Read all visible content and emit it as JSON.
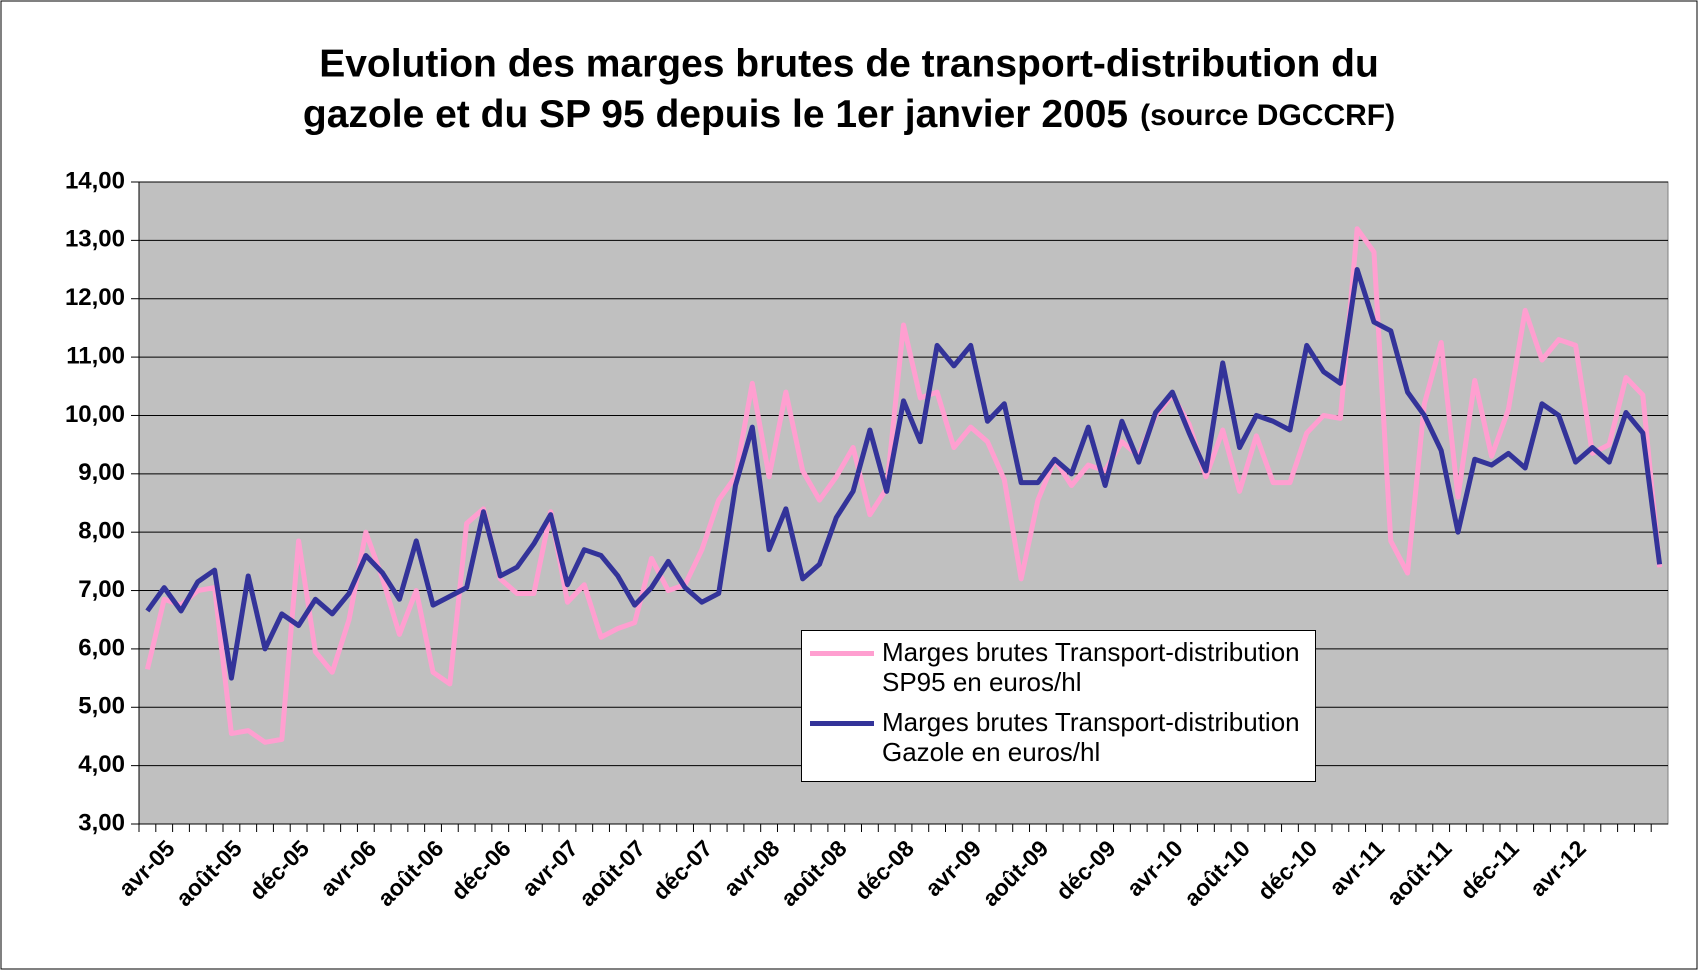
{
  "chart_data": {
    "type": "line",
    "title_lines": [
      "Evolution des marges brutes de transport-distribution du",
      "gazole et du SP 95 depuis le 1er janvier 2005"
    ],
    "source": "(source DGCCRF)",
    "categories": [
      null,
      "avr-05",
      null,
      null,
      null,
      "août-05",
      null,
      null,
      null,
      "déc-05",
      null,
      null,
      null,
      "avr-06",
      null,
      null,
      null,
      "août-06",
      null,
      null,
      null,
      "déc-06",
      null,
      null,
      null,
      "avr-07",
      null,
      null,
      null,
      "août-07",
      null,
      null,
      null,
      "déc-07",
      null,
      null,
      null,
      "avr-08",
      null,
      null,
      null,
      "août-08",
      null,
      null,
      null,
      "déc-08",
      null,
      null,
      null,
      "avr-09",
      null,
      null,
      null,
      "août-09",
      null,
      null,
      null,
      "déc-09",
      null,
      null,
      null,
      "avr-10",
      null,
      null,
      null,
      "août-10",
      null,
      null,
      null,
      "déc-10",
      null,
      null,
      null,
      "avr-11",
      null,
      null,
      null,
      "août-11",
      null,
      null,
      null,
      "déc-11",
      null,
      null,
      null,
      "avr-12",
      null,
      null,
      null,
      null,
      null
    ],
    "series": [
      {
        "name": "Marges brutes Transport-distribution SP95 en euros/hl",
        "color": "#ff9fd0",
        "values": [
          5.65,
          6.85,
          6.75,
          7.0,
          7.05,
          4.55,
          4.6,
          4.4,
          4.45,
          7.85,
          5.95,
          5.6,
          6.5,
          8.0,
          7.2,
          6.25,
          7.0,
          5.6,
          5.4,
          8.15,
          8.4,
          7.2,
          6.95,
          6.95,
          8.35,
          6.8,
          7.1,
          6.2,
          6.35,
          6.45,
          7.55,
          7.0,
          7.1,
          7.7,
          8.55,
          8.95,
          10.55,
          8.95,
          10.4,
          9.05,
          8.55,
          8.95,
          9.45,
          8.3,
          8.75,
          11.55,
          10.3,
          10.4,
          9.45,
          9.8,
          9.55,
          8.9,
          7.2,
          8.55,
          9.25,
          8.8,
          9.15,
          9.05,
          9.55,
          9.3,
          10.0,
          10.35,
          9.85,
          8.95,
          9.75,
          8.7,
          9.65,
          8.85,
          8.85,
          9.7,
          10.0,
          9.95,
          13.2,
          12.8,
          7.85,
          7.3,
          10.2,
          11.25,
          8.6,
          10.6,
          9.3,
          10.1,
          11.8,
          10.95,
          11.3,
          11.2,
          9.35,
          9.5,
          10.65,
          10.35,
          7.4
        ]
      },
      {
        "name": "Marges brutes Transport-distribution Gazole en euros/hl",
        "color": "#333399",
        "values": [
          6.65,
          7.05,
          6.65,
          7.15,
          7.35,
          5.5,
          7.25,
          6.0,
          6.6,
          6.4,
          6.85,
          6.6,
          6.95,
          7.6,
          7.3,
          6.85,
          7.85,
          6.75,
          6.9,
          7.05,
          8.35,
          7.25,
          7.4,
          7.8,
          8.3,
          7.1,
          7.7,
          7.6,
          7.25,
          6.75,
          7.05,
          7.5,
          7.05,
          6.8,
          6.95,
          8.8,
          9.8,
          7.7,
          8.4,
          7.2,
          7.45,
          8.25,
          8.7,
          9.75,
          8.7,
          10.25,
          9.55,
          11.2,
          10.85,
          11.2,
          9.9,
          10.2,
          8.85,
          8.85,
          9.25,
          9.0,
          9.8,
          8.8,
          9.9,
          9.2,
          10.05,
          10.4,
          9.7,
          9.05,
          10.9,
          9.45,
          10.0,
          9.9,
          9.75,
          11.2,
          10.75,
          10.55,
          12.5,
          11.6,
          11.45,
          10.4,
          10.0,
          9.4,
          8.0,
          9.25,
          9.15,
          9.35,
          9.1,
          10.2,
          10.0,
          9.2,
          9.45,
          9.2,
          10.05,
          9.7,
          7.45
        ]
      }
    ],
    "ylim": [
      3,
      14
    ],
    "yticks": [
      {
        "value": 3,
        "label": "3,00"
      },
      {
        "value": 4,
        "label": "4,00"
      },
      {
        "value": 5,
        "label": "5,00"
      },
      {
        "value": 6,
        "label": "6,00"
      },
      {
        "value": 7,
        "label": "7,00"
      },
      {
        "value": 8,
        "label": "8,00"
      },
      {
        "value": 9,
        "label": "9,00"
      },
      {
        "value": 10,
        "label": "10,00"
      },
      {
        "value": 11,
        "label": "11,00"
      },
      {
        "value": 12,
        "label": "12,00"
      },
      {
        "value": 13,
        "label": "13,00"
      },
      {
        "value": 14,
        "label": "14,00"
      }
    ],
    "grid": true,
    "plot_background": "#c0c0c0"
  }
}
